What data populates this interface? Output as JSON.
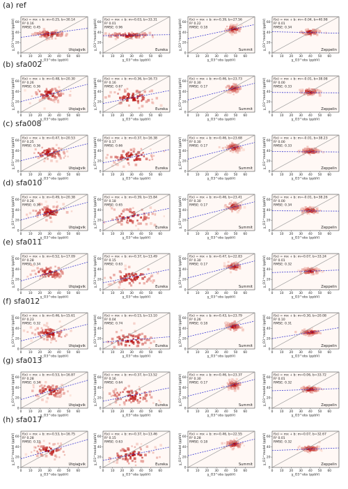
{
  "figure": {
    "rows": [
      {
        "label": "(a)",
        "name": "ref"
      },
      {
        "label": "(b)",
        "name": "sfa002"
      },
      {
        "label": "(c)",
        "name": "sfa008"
      },
      {
        "label": "(d)",
        "name": "sfa010"
      },
      {
        "label": "(e)",
        "name": "sfa011"
      },
      {
        "label": "(f)",
        "name": "sfa012"
      },
      {
        "label": "(g)",
        "name": "sfa013"
      },
      {
        "label": "(h)",
        "name": "sfa017"
      }
    ],
    "columns": [
      "Utqiaġvik",
      "Eureka",
      "Summit",
      "Zeppelin"
    ],
    "xlabel": "χ_O3^obs (ppbV)",
    "ylabel": "χ_O3^model (ppbV)",
    "colors": {
      "fit": "#3a3ad0",
      "one_to_one": "#9a9a9a",
      "cmap_low": "#fde6dc",
      "cmap_high": "#b30000"
    }
  },
  "chart_data": [
    {
      "type": "heatmap",
      "row": "ref",
      "station": "Utqiaġvik",
      "fit": {
        "m": 0.25,
        "b": 30.14
      },
      "r2": "0.16",
      "rmse": "0.45",
      "xlim": [
        0,
        70
      ],
      "ylim": [
        0,
        70
      ],
      "center": [
        30,
        36
      ],
      "spread": [
        9,
        4
      ]
    },
    {
      "type": "heatmap",
      "row": "ref",
      "station": "Eureka",
      "fit": {
        "m": 0.03,
        "b": 33.31
      },
      "r2": "0.01",
      "rmse": "0.96",
      "xlim": [
        0,
        70
      ],
      "ylim": [
        0,
        70
      ],
      "center": [
        28,
        34
      ],
      "spread": [
        14,
        3
      ]
    },
    {
      "type": "heatmap",
      "row": "ref",
      "station": "Summit",
      "fit": {
        "m": 0.39,
        "b": 27.56
      },
      "r2": "0.22",
      "rmse": "0.18",
      "xlim": [
        0,
        70
      ],
      "ylim": [
        0,
        70
      ],
      "center": [
        48,
        46
      ],
      "spread": [
        4,
        4
      ]
    },
    {
      "type": "heatmap",
      "row": "ref",
      "station": "Zeppelin",
      "fit": {
        "m": -0.04,
        "b": 40.98
      },
      "r2": "0.01",
      "rmse": "0.34",
      "xlim": [
        0,
        70
      ],
      "ylim": [
        0,
        70
      ],
      "center": [
        40,
        40
      ],
      "spread": [
        5,
        3
      ]
    },
    {
      "type": "heatmap",
      "row": "sfa002",
      "station": "Utqiaġvik",
      "fit": {
        "m": 0.48,
        "b": 20.3
      },
      "r2": "0.26",
      "rmse": "0.36",
      "xlim": [
        0,
        70
      ],
      "ylim": [
        0,
        70
      ],
      "center": [
        30,
        35
      ],
      "spread": [
        9,
        7
      ]
    },
    {
      "type": "heatmap",
      "row": "sfa002",
      "station": "Eureka",
      "fit": {
        "m": 0.36,
        "b": 16.73
      },
      "r2": "0.16",
      "rmse": "0.67",
      "xlim": [
        0,
        70
      ],
      "ylim": [
        0,
        70
      ],
      "center": [
        30,
        28
      ],
      "spread": [
        13,
        9
      ]
    },
    {
      "type": "heatmap",
      "row": "sfa002",
      "station": "Summit",
      "fit": {
        "m": 0.46,
        "b": 23.73
      },
      "r2": "0.30",
      "rmse": "0.17",
      "xlim": [
        0,
        70
      ],
      "ylim": [
        0,
        70
      ],
      "center": [
        48,
        46
      ],
      "spread": [
        4,
        4
      ]
    },
    {
      "type": "heatmap",
      "row": "sfa002",
      "station": "Zeppelin",
      "fit": {
        "m": -0.01,
        "b": 38.08
      },
      "r2": "0.00",
      "rmse": "0.33",
      "xlim": [
        0,
        70
      ],
      "ylim": [
        0,
        70
      ],
      "center": [
        40,
        39
      ],
      "spread": [
        5,
        3
      ]
    },
    {
      "type": "heatmap",
      "row": "sfa008",
      "station": "Utqiaġvik",
      "fit": {
        "m": 0.47,
        "b": 20.53
      },
      "r2": "0.25",
      "rmse": "0.36",
      "xlim": [
        0,
        70
      ],
      "ylim": [
        0,
        70
      ],
      "center": [
        30,
        35
      ],
      "spread": [
        9,
        7
      ]
    },
    {
      "type": "heatmap",
      "row": "sfa008",
      "station": "Eureka",
      "fit": {
        "m": 0.37,
        "b": 16.38
      },
      "r2": "0.17",
      "rmse": "0.66",
      "xlim": [
        0,
        70
      ],
      "ylim": [
        0,
        70
      ],
      "center": [
        30,
        28
      ],
      "spread": [
        13,
        9
      ]
    },
    {
      "type": "heatmap",
      "row": "sfa008",
      "station": "Summit",
      "fit": {
        "m": 0.46,
        "b": 23.68
      },
      "r2": "0.30",
      "rmse": "0.17",
      "xlim": [
        0,
        70
      ],
      "ylim": [
        0,
        70
      ],
      "center": [
        48,
        46
      ],
      "spread": [
        4,
        4
      ]
    },
    {
      "type": "heatmap",
      "row": "sfa008",
      "station": "Zeppelin",
      "fit": {
        "m": -0.01,
        "b": 38.23
      },
      "r2": "0.00",
      "rmse": "0.33",
      "xlim": [
        0,
        70
      ],
      "ylim": [
        0,
        70
      ],
      "center": [
        40,
        39
      ],
      "spread": [
        5,
        3
      ]
    },
    {
      "type": "heatmap",
      "row": "sfa010",
      "station": "Utqiaġvik",
      "fit": {
        "m": 0.49,
        "b": 20.38
      },
      "r2": "0.26",
      "rmse": "0.36",
      "xlim": [
        0,
        70
      ],
      "ylim": [
        0,
        70
      ],
      "center": [
        30,
        35
      ],
      "spread": [
        9,
        7
      ]
    },
    {
      "type": "heatmap",
      "row": "sfa010",
      "station": "Eureka",
      "fit": {
        "m": 0.39,
        "b": 15.84
      },
      "r2": "0.18",
      "rmse": "0.65",
      "xlim": [
        0,
        70
      ],
      "ylim": [
        0,
        70
      ],
      "center": [
        30,
        27
      ],
      "spread": [
        13,
        9
      ]
    },
    {
      "type": "heatmap",
      "row": "sfa010",
      "station": "Summit",
      "fit": {
        "m": 0.46,
        "b": 23.41
      },
      "r2": "0.30",
      "rmse": "0.17",
      "xlim": [
        0,
        70
      ],
      "ylim": [
        0,
        70
      ],
      "center": [
        48,
        46
      ],
      "spread": [
        4,
        4
      ]
    },
    {
      "type": "heatmap",
      "row": "sfa010",
      "station": "Zeppelin",
      "fit": {
        "m": -0.01,
        "b": 38.26
      },
      "r2": "0.00",
      "rmse": "0.34",
      "xlim": [
        0,
        70
      ],
      "ylim": [
        0,
        70
      ],
      "center": [
        40,
        39
      ],
      "spread": [
        5,
        3
      ]
    },
    {
      "type": "heatmap",
      "row": "sfa011",
      "station": "Utqiaġvik",
      "fit": {
        "m": 0.52,
        "b": 17.09
      },
      "r2": "0.28",
      "rmse": "0.34",
      "xlim": [
        0,
        70
      ],
      "ylim": [
        0,
        70
      ],
      "center": [
        30,
        33
      ],
      "spread": [
        9,
        7
      ]
    },
    {
      "type": "heatmap",
      "row": "sfa011",
      "station": "Eureka",
      "fit": {
        "m": 0.37,
        "b": 13.49
      },
      "r2": "0.15",
      "rmse": "0.63",
      "xlim": [
        0,
        70
      ],
      "ylim": [
        0,
        70
      ],
      "center": [
        30,
        24
      ],
      "spread": [
        13,
        9
      ]
    },
    {
      "type": "heatmap",
      "row": "sfa011",
      "station": "Summit",
      "fit": {
        "m": 0.47,
        "b": 22.83
      },
      "r2": "0.30",
      "rmse": "0.17",
      "xlim": [
        0,
        70
      ],
      "ylim": [
        0,
        70
      ],
      "center": [
        48,
        45
      ],
      "spread": [
        4,
        4
      ]
    },
    {
      "type": "heatmap",
      "row": "sfa011",
      "station": "Zeppelin",
      "fit": {
        "m": 0.07,
        "b": 33.24
      },
      "r2": "0.01",
      "rmse": "0.32",
      "xlim": [
        0,
        70
      ],
      "ylim": [
        0,
        70
      ],
      "center": [
        40,
        36
      ],
      "spread": [
        5,
        3
      ]
    },
    {
      "type": "heatmap",
      "row": "sfa012",
      "station": "Utqiaġvik",
      "fit": {
        "m": 0.46,
        "b": 15.61
      },
      "r2": "0.23",
      "rmse": "0.32",
      "xlim": [
        0,
        70
      ],
      "ylim": [
        0,
        70
      ],
      "center": [
        30,
        30
      ],
      "spread": [
        9,
        7
      ]
    },
    {
      "type": "heatmap",
      "row": "sfa012",
      "station": "Eureka",
      "fit": {
        "m": 0.15,
        "b": 13.1
      },
      "r2": "0.04",
      "rmse": "0.74",
      "xlim": [
        0,
        70
      ],
      "ylim": [
        0,
        70
      ],
      "center": [
        28,
        17
      ],
      "spread": [
        13,
        9
      ]
    },
    {
      "type": "heatmap",
      "row": "sfa012",
      "station": "Summit",
      "fit": {
        "m": 0.43,
        "b": 23.79
      },
      "r2": "0.26",
      "rmse": "0.18",
      "xlim": [
        0,
        70
      ],
      "ylim": [
        0,
        70
      ],
      "center": [
        48,
        44
      ],
      "spread": [
        4,
        4
      ]
    },
    {
      "type": "heatmap",
      "row": "sfa012",
      "station": "Zeppelin",
      "fit": {
        "m": 0.3,
        "b": 20.08
      },
      "r2": "0.10",
      "rmse": "0.31",
      "xlim": [
        0,
        70
      ],
      "ylim": [
        0,
        70
      ],
      "center": [
        40,
        32
      ],
      "spread": [
        5,
        3
      ]
    },
    {
      "type": "heatmap",
      "row": "sfa013",
      "station": "Utqiaġvik",
      "fit": {
        "m": 0.53,
        "b": 16.87
      },
      "r2": "0.28",
      "rmse": "0.34",
      "xlim": [
        0,
        70
      ],
      "ylim": [
        0,
        70
      ],
      "center": [
        30,
        33
      ],
      "spread": [
        9,
        7
      ]
    },
    {
      "type": "heatmap",
      "row": "sfa013",
      "station": "Eureka",
      "fit": {
        "m": 0.37,
        "b": 13.52
      },
      "r2": "0.16",
      "rmse": "0.64",
      "xlim": [
        0,
        70
      ],
      "ylim": [
        0,
        70
      ],
      "center": [
        30,
        24
      ],
      "spread": [
        13,
        9
      ]
    },
    {
      "type": "heatmap",
      "row": "sfa013",
      "station": "Summit",
      "fit": {
        "m": 0.46,
        "b": 23.37
      },
      "r2": "0.30",
      "rmse": "0.17",
      "xlim": [
        0,
        70
      ],
      "ylim": [
        0,
        70
      ],
      "center": [
        48,
        45
      ],
      "spread": [
        4,
        4
      ]
    },
    {
      "type": "heatmap",
      "row": "sfa013",
      "station": "Zeppelin",
      "fit": {
        "m": 0.06,
        "b": 33.72
      },
      "r2": "0.01",
      "rmse": "0.32",
      "xlim": [
        0,
        70
      ],
      "ylim": [
        0,
        70
      ],
      "center": [
        40,
        36
      ],
      "spread": [
        5,
        3
      ]
    },
    {
      "type": "heatmap",
      "row": "sfa017",
      "station": "Utqiaġvik",
      "fit": {
        "m": 0.53,
        "b": 16.75
      },
      "r2": "0.28",
      "rmse": "0.33",
      "xlim": [
        0,
        70
      ],
      "ylim": [
        0,
        70
      ],
      "center": [
        30,
        33
      ],
      "spread": [
        9,
        7
      ]
    },
    {
      "type": "heatmap",
      "row": "sfa017",
      "station": "Eureka",
      "fit": {
        "m": 0.37,
        "b": 13.46
      },
      "r2": "0.15",
      "rmse": "0.63",
      "xlim": [
        0,
        70
      ],
      "ylim": [
        0,
        70
      ],
      "center": [
        30,
        24
      ],
      "spread": [
        13,
        9
      ]
    },
    {
      "type": "heatmap",
      "row": "sfa017",
      "station": "Summit",
      "fit": {
        "m": 0.46,
        "b": 22.55
      },
      "r2": "0.28",
      "rmse": "0.18",
      "xlim": [
        0,
        70
      ],
      "ylim": [
        0,
        70
      ],
      "center": [
        48,
        45
      ],
      "spread": [
        4,
        4
      ]
    },
    {
      "type": "heatmap",
      "row": "sfa017",
      "station": "Zeppelin",
      "fit": {
        "m": 0.07,
        "b": 32.67
      },
      "r2": "0.01",
      "rmse": "0.32",
      "xlim": [
        0,
        70
      ],
      "ylim": [
        0,
        70
      ],
      "center": [
        40,
        36
      ],
      "spread": [
        5,
        3
      ]
    }
  ]
}
